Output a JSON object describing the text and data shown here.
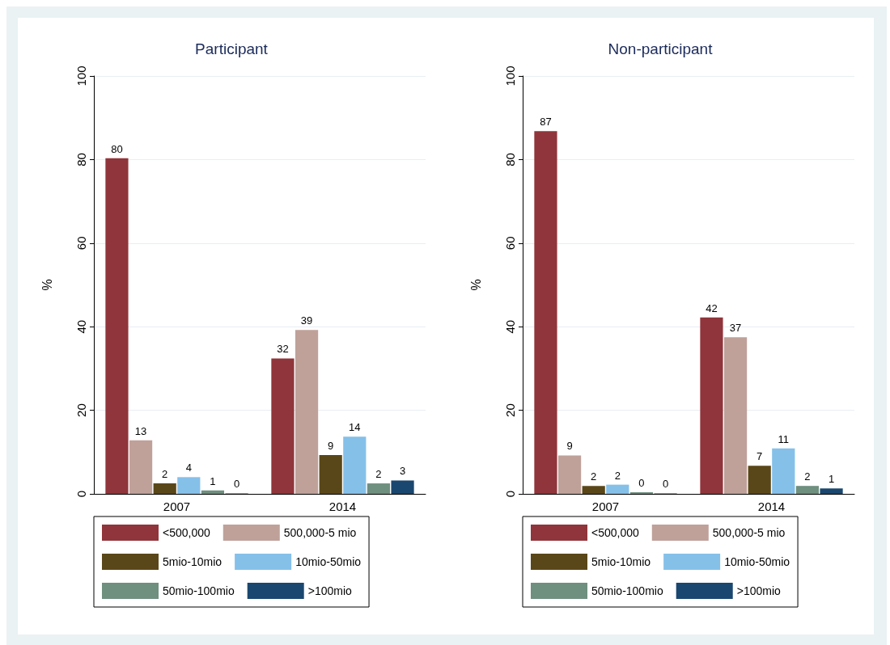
{
  "chart_data": [
    {
      "type": "bar",
      "title": "Participant",
      "ylabel": "%",
      "categories": [
        "2007",
        "2014"
      ],
      "ylim": [
        0,
        100
      ],
      "yticks": [
        0,
        20,
        40,
        60,
        80,
        100
      ],
      "grid": "y",
      "legend": "bottom",
      "series": [
        {
          "name": "<500,000",
          "color": "#90353b",
          "values": [
            80.3,
            32.4
          ],
          "value_labels": [
            "80",
            "32"
          ]
        },
        {
          "name": "500,000-5 mio",
          "color": "#bfa19a",
          "values": [
            12.8,
            39.2
          ],
          "value_labels": [
            "13",
            "39"
          ]
        },
        {
          "name": "5mio-10mio",
          "color": "#5a4719",
          "values": [
            2.5,
            9.3
          ],
          "value_labels": [
            "2",
            "9"
          ]
        },
        {
          "name": "10mio-50mio",
          "color": "#85c0e9",
          "values": [
            4.0,
            13.7
          ],
          "value_labels": [
            "4",
            "14"
          ]
        },
        {
          "name": "50mio-100mio",
          "color": "#6f8f7f",
          "values": [
            0.8,
            2.5
          ],
          "value_labels": [
            "1",
            "2"
          ]
        },
        {
          "name": ">100mio",
          "color": "#1a476f",
          "values": [
            0.1,
            3.2
          ],
          "value_labels": [
            "0",
            "3"
          ]
        }
      ]
    },
    {
      "type": "bar",
      "title": "Non-participant",
      "ylabel": "%",
      "categories": [
        "2007",
        "2014"
      ],
      "ylim": [
        0,
        100
      ],
      "yticks": [
        0,
        20,
        40,
        60,
        80,
        100
      ],
      "grid": "y",
      "legend": "bottom",
      "series": [
        {
          "name": "<500,000",
          "color": "#90353b",
          "values": [
            86.8,
            42.2
          ],
          "value_labels": [
            "87",
            "42"
          ]
        },
        {
          "name": "500,000-5 mio",
          "color": "#bfa19a",
          "values": [
            9.2,
            37.5
          ],
          "value_labels": [
            "9",
            "37"
          ]
        },
        {
          "name": "5mio-10mio",
          "color": "#5a4719",
          "values": [
            1.9,
            6.7
          ],
          "value_labels": [
            "2",
            "7"
          ]
        },
        {
          "name": "10mio-50mio",
          "color": "#85c0e9",
          "values": [
            2.2,
            10.9
          ],
          "value_labels": [
            "2",
            "11"
          ]
        },
        {
          "name": "50mio-100mio",
          "color": "#6f8f7f",
          "values": [
            0.4,
            1.9
          ],
          "value_labels": [
            "0",
            "2"
          ]
        },
        {
          "name": ">100mio",
          "color": "#1a476f",
          "values": [
            0.1,
            1.3
          ],
          "value_labels": [
            "0",
            "1"
          ]
        }
      ]
    }
  ]
}
